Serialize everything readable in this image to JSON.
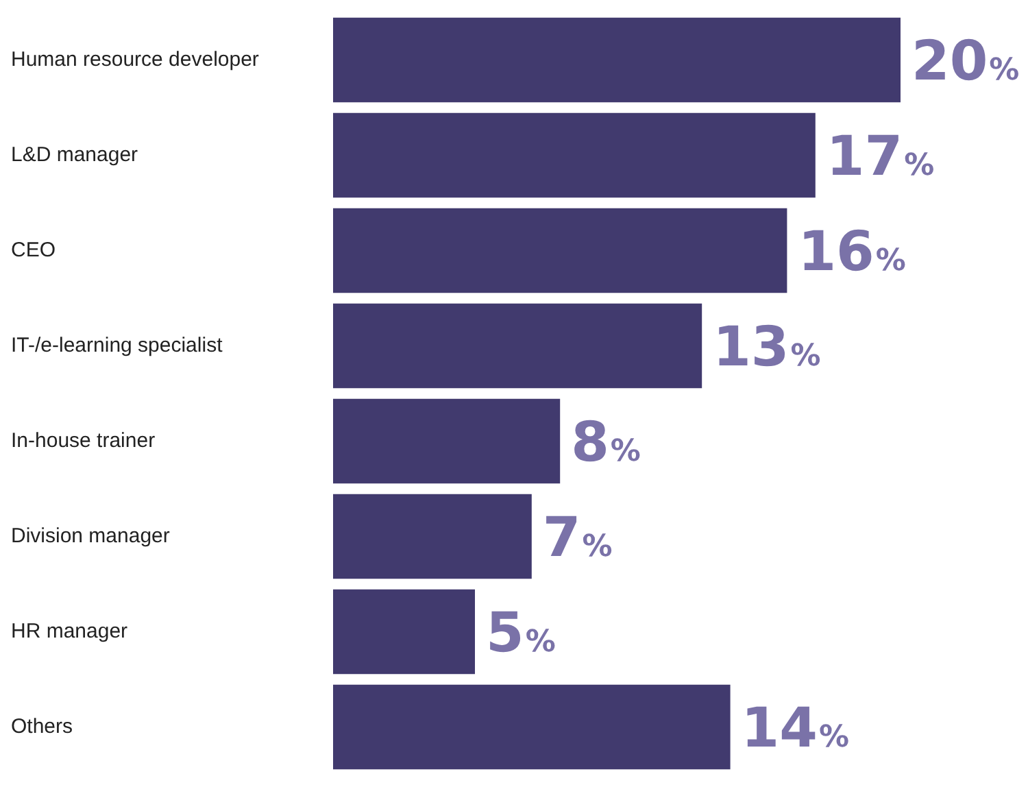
{
  "chart_data": {
    "type": "bar",
    "orientation": "horizontal",
    "categories": [
      "Human resource developer",
      "L&D manager",
      "CEO",
      "IT-/e-learning specialist",
      "In-house trainer",
      "Division manager",
      "HR manager",
      "Others"
    ],
    "values": [
      20,
      17,
      16,
      13,
      8,
      7,
      5,
      14
    ],
    "value_labels": [
      "20%",
      "17%",
      "16%",
      "13%",
      "8%",
      "7%",
      "5%",
      "14%"
    ],
    "color": "#413a6e",
    "tick_labels": "y"
  }
}
